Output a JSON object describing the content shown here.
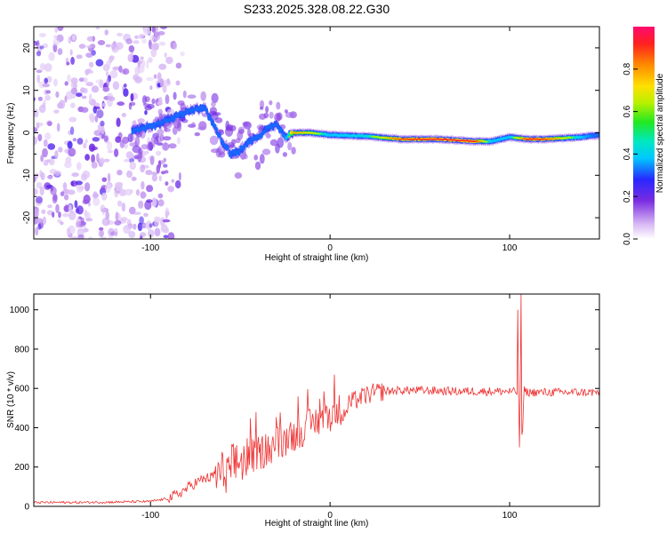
{
  "title": "S233.2025.328.08.22.G30",
  "chart_data": [
    {
      "type": "heatmap",
      "name": "spectrogram",
      "xlabel": "Height of straight line (km)",
      "ylabel": "Frequency (Hz)",
      "xlim": [
        -165,
        150
      ],
      "ylim": [
        -25,
        25
      ],
      "xticks": [
        -100,
        0,
        100
      ],
      "yticks": [
        -20,
        -10,
        0,
        10,
        20
      ],
      "colorbar": {
        "label": "Normalized spectral amplitude",
        "range": [
          0,
          1
        ],
        "ticks": [
          0.0,
          0.2,
          0.4,
          0.6,
          0.8
        ],
        "tick_labels": [
          "0.0",
          "0.2",
          "0.4",
          "0.6",
          "0.8"
        ]
      },
      "noise_region": {
        "x_range": [
          -165,
          -90
        ],
        "freq_range": [
          -25,
          25
        ],
        "amplitude": "0.0-0.2"
      },
      "trace": {
        "x": [
          -110,
          -100,
          -90,
          -80,
          -70,
          -65,
          -60,
          -55,
          -50,
          -45,
          -40,
          -35,
          -30,
          -25,
          -20,
          -10,
          0,
          20,
          40,
          60,
          80,
          90,
          100,
          110,
          120,
          140,
          150
        ],
        "freq": [
          0.5,
          1.5,
          3,
          5,
          6,
          2,
          -2,
          -5,
          -4,
          -2,
          -1,
          1,
          2,
          -1,
          0,
          0,
          -0.5,
          -0.8,
          -1.5,
          -1.5,
          -2,
          -2,
          -1,
          -1.5,
          -1.5,
          -1,
          -0.5
        ],
        "amplitude": [
          0.3,
          0.3,
          0.3,
          0.35,
          0.4,
          0.35,
          0.3,
          0.35,
          0.35,
          0.35,
          0.35,
          0.4,
          0.4,
          0.45,
          0.8,
          0.7,
          0.5,
          0.55,
          0.9,
          0.95,
          0.95,
          0.5,
          0.5,
          0.95,
          0.9,
          0.5,
          0.4
        ]
      }
    },
    {
      "type": "line",
      "name": "snr",
      "xlabel": "Height of straight line (km)",
      "ylabel": "SNR (10 * v/v)",
      "xlim": [
        -165,
        150
      ],
      "ylim": [
        0,
        1080
      ],
      "xticks": [
        -100,
        0,
        100
      ],
      "yticks": [
        0,
        200,
        400,
        600,
        800,
        1000
      ],
      "color": "#ee3333",
      "x": [
        -165,
        -140,
        -120,
        -100,
        -90,
        -85,
        -80,
        -75,
        -70,
        -65,
        -60,
        -55,
        -50,
        -45,
        -40,
        -35,
        -30,
        -25,
        -20,
        -15,
        -10,
        -5,
        0,
        5,
        10,
        15,
        20,
        25,
        30,
        40,
        50,
        60,
        70,
        80,
        90,
        100,
        104,
        106,
        107,
        108,
        110,
        120,
        130,
        140,
        150
      ],
      "values": [
        20,
        20,
        22,
        25,
        40,
        60,
        90,
        120,
        140,
        150,
        170,
        200,
        230,
        250,
        270,
        290,
        320,
        340,
        360,
        390,
        420,
        445,
        465,
        490,
        520,
        545,
        565,
        578,
        585,
        590,
        590,
        588,
        585,
        585,
        585,
        585,
        580,
        560,
        320,
        590,
        580,
        580,
        580,
        580,
        580
      ],
      "spikes": [
        {
          "x": 104.5,
          "value": 1000
        },
        {
          "x": 105.5,
          "value": 300
        },
        {
          "x": 106.5,
          "value": 1080
        }
      ]
    }
  ]
}
